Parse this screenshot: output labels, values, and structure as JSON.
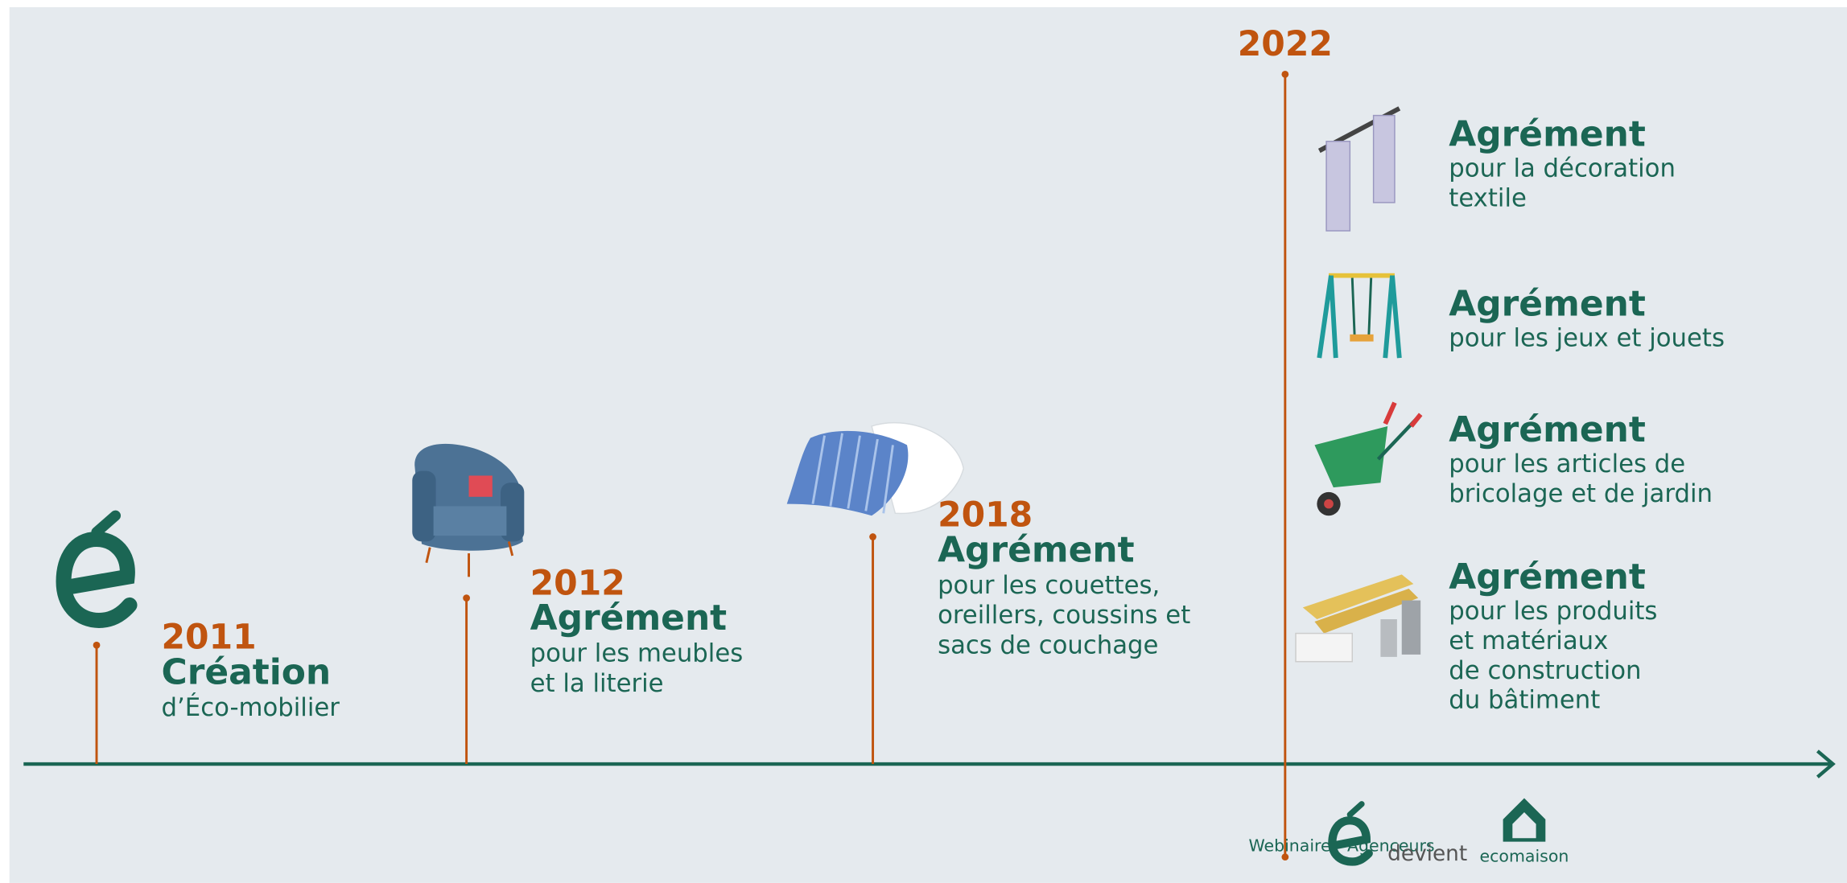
{
  "timeline": {
    "events": [
      {
        "year": "2011",
        "title": "Création",
        "lines": [
          "d’Éco-mobilier"
        ]
      },
      {
        "year": "2012",
        "title": "Agrément",
        "lines": [
          "pour les meubles",
          "et la literie"
        ]
      },
      {
        "year": "2018",
        "title": "Agrément",
        "lines": [
          "pour les couettes,",
          "oreillers, coussins et",
          "sacs de couchage"
        ]
      }
    ],
    "year_2022": "2022",
    "approvals": [
      {
        "title": "Agrément",
        "lines": [
          "pour la décoration",
          "textile"
        ]
      },
      {
        "title": "Agrément",
        "lines": [
          "pour les jeux et jouets"
        ]
      },
      {
        "title": "Agrément",
        "lines": [
          "pour les articles de",
          "bricolage et de jardin"
        ]
      },
      {
        "title": "Agrément",
        "lines": [
          "pour les produits",
          "et matériaux",
          "de construction",
          "du bâtiment"
        ]
      }
    ]
  },
  "footer": {
    "event": "Webinaire - Agenceurs",
    "devient": "devient",
    "brand": "ecomaison"
  }
}
